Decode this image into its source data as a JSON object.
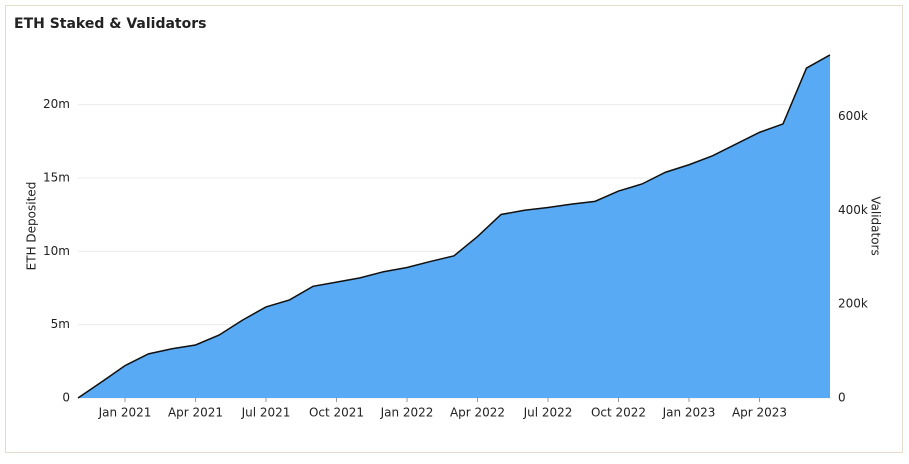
{
  "chart_data": {
    "type": "area",
    "title": "ETH Staked & Validators",
    "ylabel": "ETH Deposited",
    "y2label": "Validators",
    "x": [
      "2020-11",
      "2020-12",
      "2021-01",
      "2021-02",
      "2021-03",
      "2021-04",
      "2021-05",
      "2021-06",
      "2021-07",
      "2021-08",
      "2021-09",
      "2021-10",
      "2021-11",
      "2021-12",
      "2022-01",
      "2022-02",
      "2022-03",
      "2022-04",
      "2022-05",
      "2022-06",
      "2022-07",
      "2022-08",
      "2022-09",
      "2022-10",
      "2022-11",
      "2022-12",
      "2023-01",
      "2023-02",
      "2023-03",
      "2023-04",
      "2023-05",
      "2023-06",
      "2023-07"
    ],
    "series": [
      {
        "name": "ETH Deposited",
        "type": "area",
        "color": "#58aaf4",
        "values": [
          0,
          1100000,
          2200000,
          3000000,
          3350000,
          3600000,
          4300000,
          5300000,
          6200000,
          6700000,
          7600000,
          7900000,
          8200000,
          8600000,
          8900000,
          9300000,
          9700000,
          11000000,
          12500000,
          12800000,
          13000000,
          13200000,
          13400000,
          14100000,
          14600000,
          15400000,
          15900000,
          16500000,
          17300000,
          18100000,
          18700000,
          22500000,
          23400000
        ]
      },
      {
        "name": "Validators",
        "type": "line",
        "color": "#111111",
        "axis": "y2",
        "values": [
          0,
          34000,
          69000,
          94000,
          105000,
          113000,
          134000,
          166000,
          194000,
          209000,
          238000,
          247000,
          256000,
          269000,
          278000,
          291000,
          303000,
          344000,
          391000,
          400000,
          406000,
          413000,
          419000,
          441000,
          456000,
          481000,
          497000,
          516000,
          541000,
          566000,
          584000,
          703000,
          731000
        ]
      }
    ],
    "xlim": [
      "2020-11",
      "2023-07"
    ],
    "xticks": [
      {
        "value": "2021-01",
        "label": "Jan 2021"
      },
      {
        "value": "2021-04",
        "label": "Apr 2021"
      },
      {
        "value": "2021-07",
        "label": "Jul 2021"
      },
      {
        "value": "2021-10",
        "label": "Oct 2021"
      },
      {
        "value": "2022-01",
        "label": "Jan 2022"
      },
      {
        "value": "2022-04",
        "label": "Apr 2022"
      },
      {
        "value": "2022-07",
        "label": "Jul 2022"
      },
      {
        "value": "2022-10",
        "label": "Oct 2022"
      },
      {
        "value": "2023-01",
        "label": "Jan 2023"
      },
      {
        "value": "2023-04",
        "label": "Apr 2023"
      }
    ],
    "ylim": [
      0,
      24000000
    ],
    "yticks": [
      0,
      {
        "value": 5000000,
        "label": "5m"
      },
      {
        "value": 10000000,
        "label": "10m"
      },
      {
        "value": 15000000,
        "label": "15m"
      },
      {
        "value": 20000000,
        "label": "20m"
      }
    ],
    "y2lim": [
      0,
      750000
    ],
    "y2ticks": [
      0,
      {
        "value": 200000,
        "label": "200k"
      },
      {
        "value": 400000,
        "label": "400k"
      },
      {
        "value": 600000,
        "label": "600k"
      }
    ],
    "grid": true
  }
}
